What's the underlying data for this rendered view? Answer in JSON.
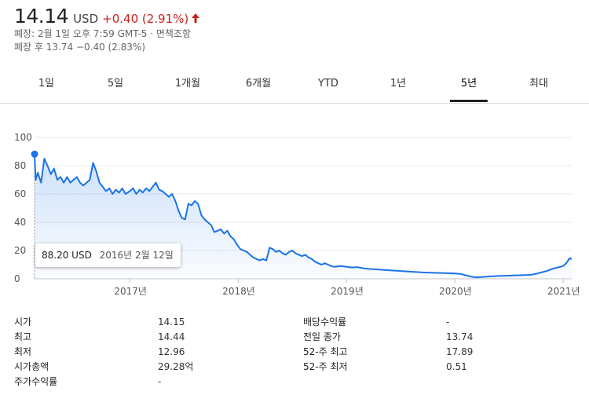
{
  "quote": {
    "price": "14.14",
    "currency": "USD",
    "change": "+0.40 (2.91%)",
    "change_color": "#c5221f",
    "arrow_icon": "up-arrow-icon",
    "closed_line": "폐장: 2월 1일 오후 7:59 GMT-5 · 면책조항",
    "after_hours_prefix": "폐장 후 13.74",
    "after_hours_change": "−0.40 (2.83%)"
  },
  "tabs": [
    {
      "label": "1일",
      "active": false
    },
    {
      "label": "5일",
      "active": false
    },
    {
      "label": "1개월",
      "active": false
    },
    {
      "label": "6개월",
      "active": false
    },
    {
      "label": "YTD",
      "active": false
    },
    {
      "label": "1년",
      "active": false
    },
    {
      "label": "5년",
      "active": true
    },
    {
      "label": "최대",
      "active": false
    }
  ],
  "tooltip": {
    "price": "88.20 USD",
    "date": "2016년 2월 12일"
  },
  "chart_data": {
    "type": "line",
    "ylim": [
      0,
      100
    ],
    "y_ticks": [
      "0",
      "20",
      "40",
      "60",
      "80",
      "100"
    ],
    "x_ticks": [
      "2017년",
      "2018년",
      "2019년",
      "2020년",
      "2021년"
    ],
    "line_color": "#1a73e8",
    "fill": "area-gradient",
    "gridlines": true,
    "highlight_point": {
      "date": "2016년 2월 12일",
      "value": 88.2
    },
    "series": [
      {
        "points": [
          [
            2016.12,
            88.2
          ],
          [
            2016.13,
            70
          ],
          [
            2016.15,
            75
          ],
          [
            2016.18,
            68
          ],
          [
            2016.21,
            85
          ],
          [
            2016.24,
            80
          ],
          [
            2016.27,
            74
          ],
          [
            2016.3,
            78
          ],
          [
            2016.33,
            70
          ],
          [
            2016.36,
            72
          ],
          [
            2016.39,
            68
          ],
          [
            2016.42,
            72
          ],
          [
            2016.45,
            68
          ],
          [
            2016.48,
            70
          ],
          [
            2016.51,
            72
          ],
          [
            2016.54,
            68
          ],
          [
            2016.57,
            66
          ],
          [
            2016.6,
            68
          ],
          [
            2016.63,
            70
          ],
          [
            2016.66,
            82
          ],
          [
            2016.69,
            76
          ],
          [
            2016.72,
            68
          ],
          [
            2016.75,
            65
          ],
          [
            2016.78,
            62
          ],
          [
            2016.81,
            64
          ],
          [
            2016.84,
            60
          ],
          [
            2016.87,
            63
          ],
          [
            2016.9,
            61
          ],
          [
            2016.93,
            64
          ],
          [
            2016.96,
            60
          ],
          [
            2017.0,
            62
          ],
          [
            2017.03,
            64
          ],
          [
            2017.06,
            60
          ],
          [
            2017.09,
            63
          ],
          [
            2017.12,
            61
          ],
          [
            2017.15,
            64
          ],
          [
            2017.18,
            62
          ],
          [
            2017.21,
            65
          ],
          [
            2017.24,
            68
          ],
          [
            2017.27,
            63
          ],
          [
            2017.3,
            62
          ],
          [
            2017.33,
            60
          ],
          [
            2017.36,
            58
          ],
          [
            2017.39,
            60
          ],
          [
            2017.42,
            55
          ],
          [
            2017.45,
            48
          ],
          [
            2017.48,
            43
          ],
          [
            2017.51,
            42
          ],
          [
            2017.54,
            53
          ],
          [
            2017.57,
            52
          ],
          [
            2017.6,
            55
          ],
          [
            2017.63,
            53
          ],
          [
            2017.66,
            45
          ],
          [
            2017.69,
            42
          ],
          [
            2017.72,
            40
          ],
          [
            2017.75,
            38
          ],
          [
            2017.78,
            33
          ],
          [
            2017.81,
            34
          ],
          [
            2017.84,
            35
          ],
          [
            2017.87,
            32
          ],
          [
            2017.9,
            34
          ],
          [
            2017.93,
            30
          ],
          [
            2017.96,
            28
          ],
          [
            2017.99,
            24
          ],
          [
            2018.02,
            21
          ],
          [
            2018.05,
            20
          ],
          [
            2018.08,
            19
          ],
          [
            2018.11,
            17
          ],
          [
            2018.14,
            15
          ],
          [
            2018.17,
            14
          ],
          [
            2018.2,
            13
          ],
          [
            2018.23,
            14
          ],
          [
            2018.26,
            13
          ],
          [
            2018.29,
            22
          ],
          [
            2018.32,
            21
          ],
          [
            2018.35,
            19
          ],
          [
            2018.38,
            20
          ],
          [
            2018.41,
            18
          ],
          [
            2018.44,
            17
          ],
          [
            2018.47,
            19
          ],
          [
            2018.5,
            20
          ],
          [
            2018.53,
            18
          ],
          [
            2018.56,
            17
          ],
          [
            2018.59,
            16
          ],
          [
            2018.62,
            17
          ],
          [
            2018.65,
            15
          ],
          [
            2018.68,
            14
          ],
          [
            2018.71,
            12
          ],
          [
            2018.74,
            11
          ],
          [
            2018.77,
            10
          ],
          [
            2018.8,
            11
          ],
          [
            2018.83,
            10
          ],
          [
            2018.86,
            9
          ],
          [
            2018.89,
            8.5
          ],
          [
            2018.92,
            8.8
          ],
          [
            2018.95,
            9
          ],
          [
            2019.0,
            8.5
          ],
          [
            2019.05,
            8
          ],
          [
            2019.1,
            8.3
          ],
          [
            2019.15,
            7.5
          ],
          [
            2019.2,
            7
          ],
          [
            2019.3,
            6.5
          ],
          [
            2019.4,
            6
          ],
          [
            2019.5,
            5.5
          ],
          [
            2019.6,
            5
          ],
          [
            2019.7,
            4.5
          ],
          [
            2019.8,
            4.2
          ],
          [
            2019.9,
            4
          ],
          [
            2020.0,
            3.8
          ],
          [
            2020.05,
            3.5
          ],
          [
            2020.1,
            2.5
          ],
          [
            2020.15,
            1.5
          ],
          [
            2020.2,
            1.0
          ],
          [
            2020.25,
            1.2
          ],
          [
            2020.3,
            1.5
          ],
          [
            2020.4,
            2.0
          ],
          [
            2020.5,
            2.2
          ],
          [
            2020.6,
            2.5
          ],
          [
            2020.7,
            2.8
          ],
          [
            2020.75,
            3.5
          ],
          [
            2020.8,
            4.5
          ],
          [
            2020.85,
            5.5
          ],
          [
            2020.9,
            7
          ],
          [
            2020.95,
            8
          ],
          [
            2021.0,
            9
          ],
          [
            2021.03,
            11
          ],
          [
            2021.06,
            14.5
          ],
          [
            2021.08,
            14.14
          ]
        ]
      }
    ]
  },
  "stats": {
    "left": [
      {
        "label": "시가",
        "value": "14.15"
      },
      {
        "label": "최고",
        "value": "14.44"
      },
      {
        "label": "최저",
        "value": "12.96"
      },
      {
        "label": "시가총액",
        "value": "29.28억"
      },
      {
        "label": "주가수익률",
        "value": "-"
      }
    ],
    "right": [
      {
        "label": "배당수익률",
        "value": "-"
      },
      {
        "label": "전일 종가",
        "value": "13.74"
      },
      {
        "label": "52-주 최고",
        "value": "17.89"
      },
      {
        "label": "52-주 최저",
        "value": "0.51"
      }
    ]
  }
}
